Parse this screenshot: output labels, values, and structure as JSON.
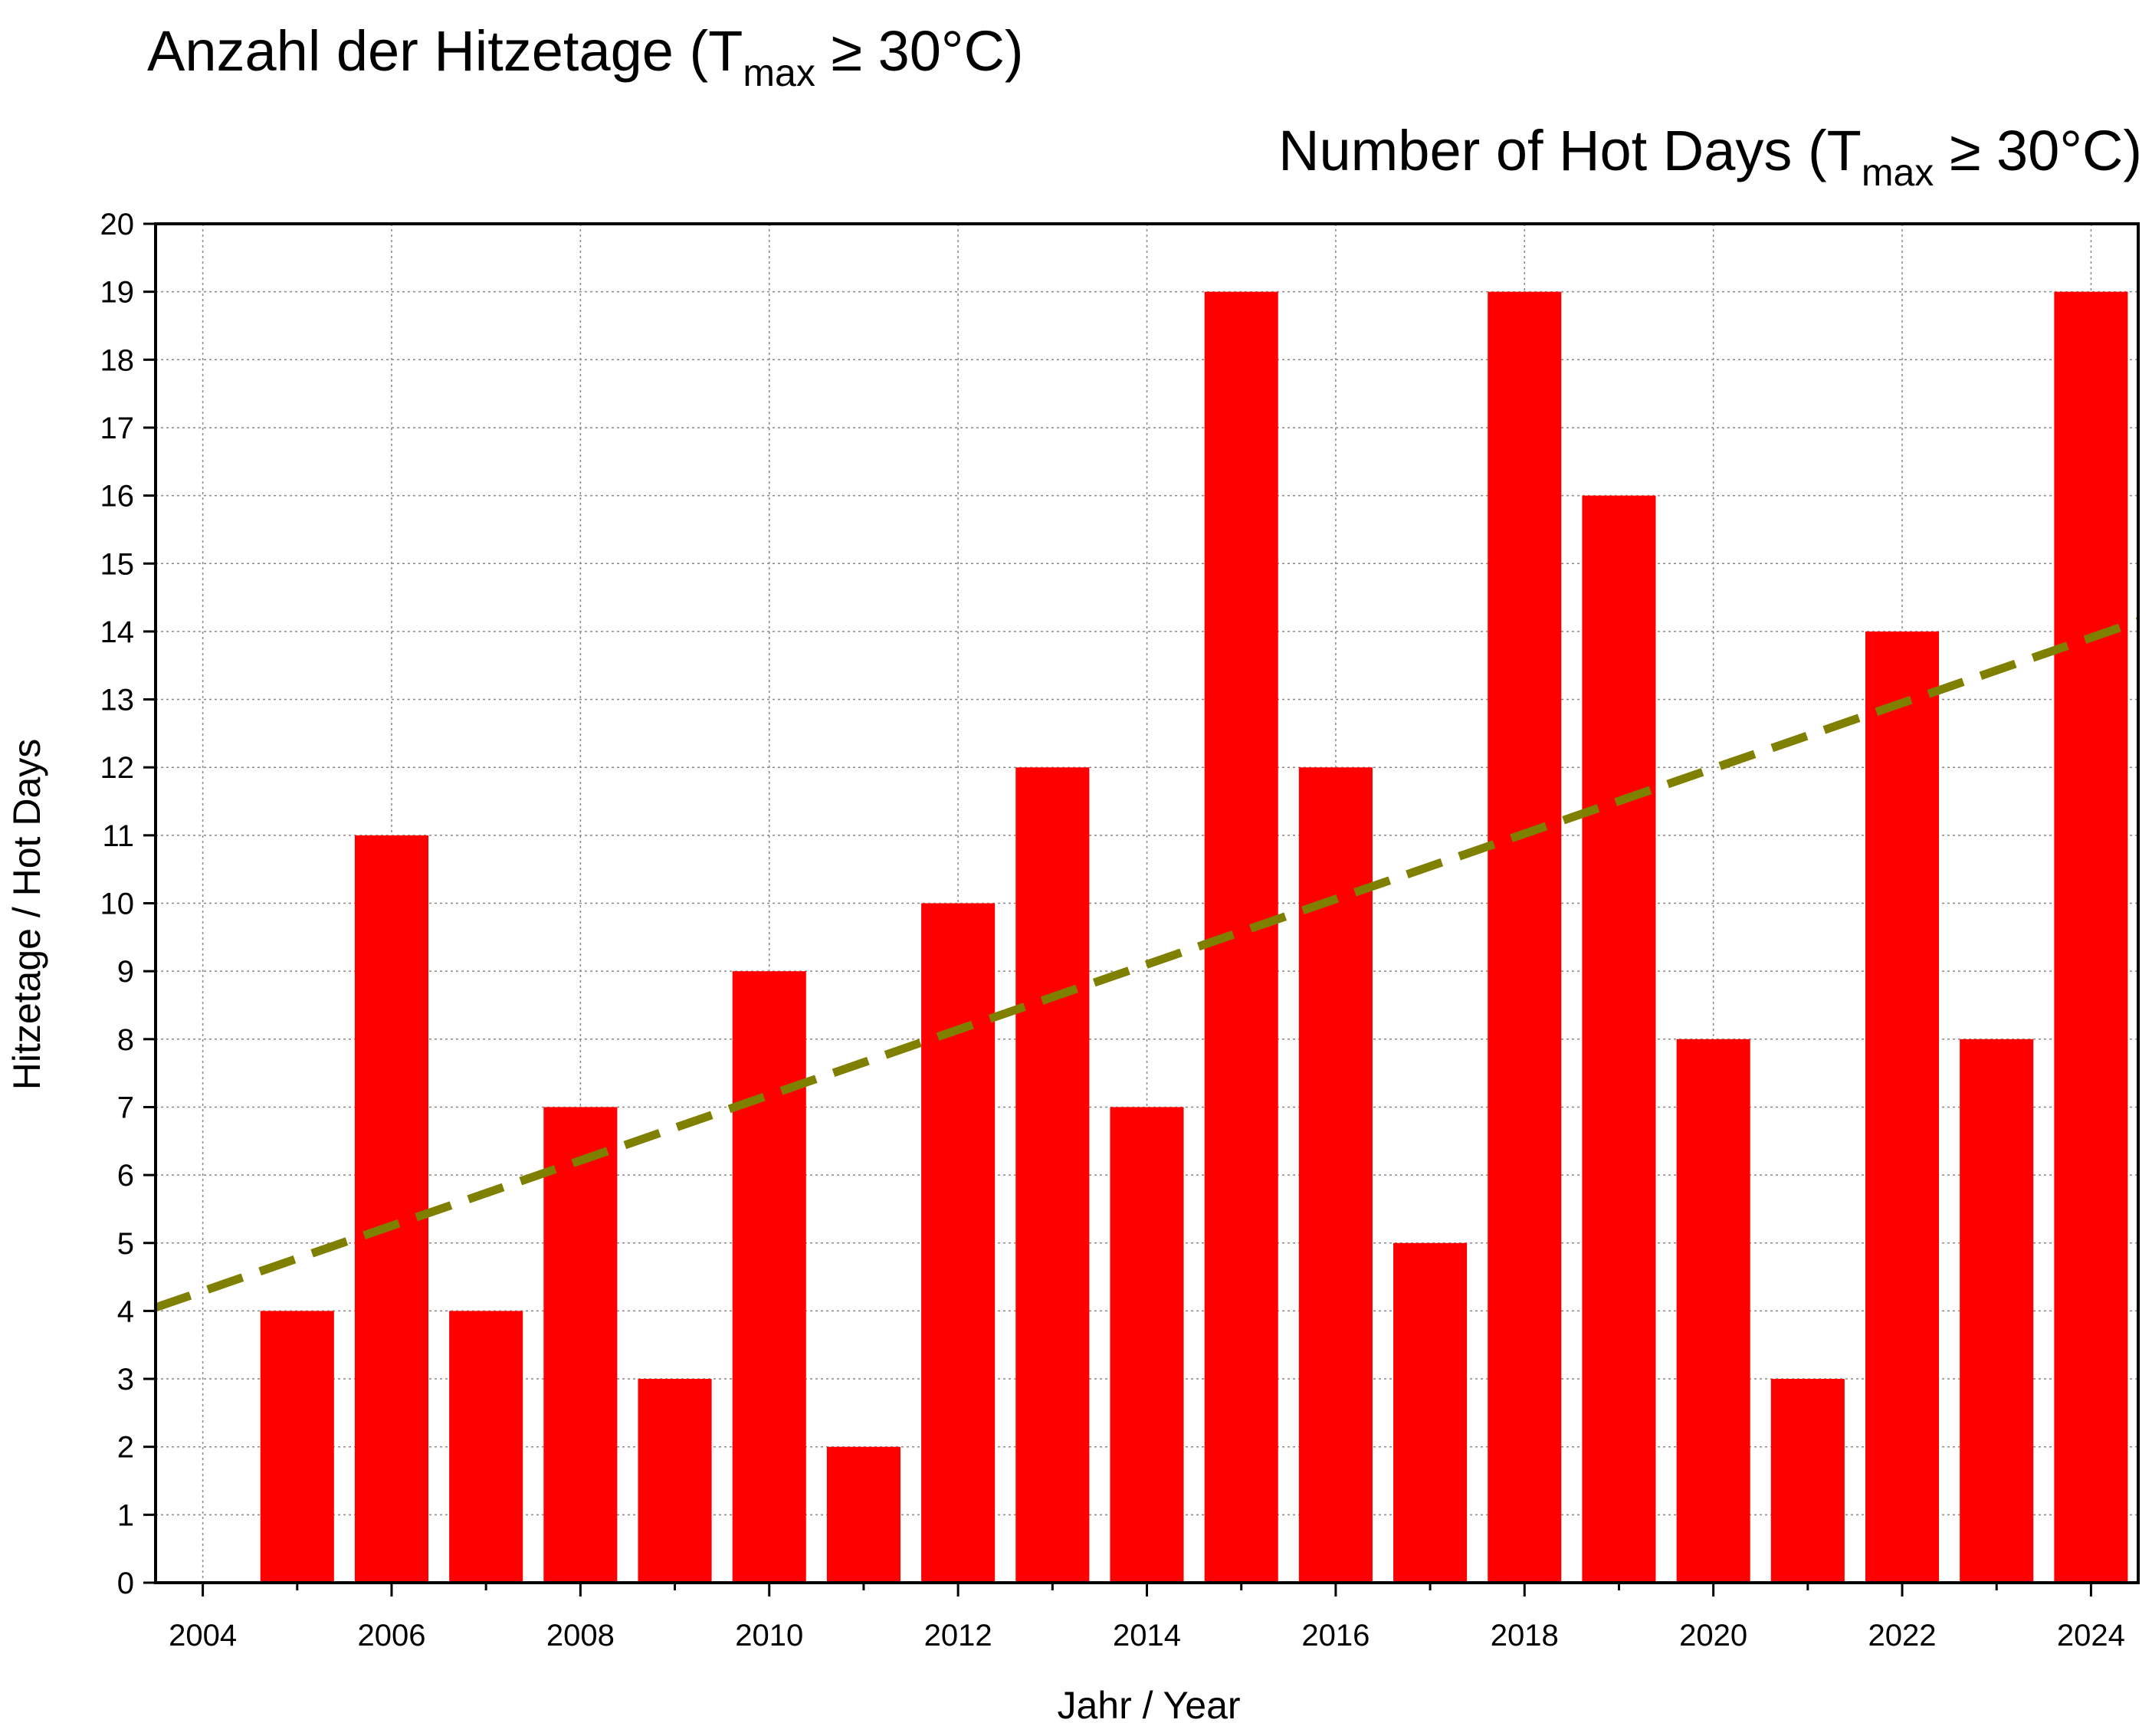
{
  "title_de": {
    "prefix": "Anzahl der Hitzetage (T",
    "subscript": "max",
    "suffix": " ≥ 30°C)"
  },
  "title_en": {
    "prefix": "Number of Hot Days (T",
    "subscript": "max",
    "suffix": " ≥ 30°C)"
  },
  "colors": {
    "bar": "#ff0000",
    "trend": "#808000",
    "grid": "#888888",
    "axis": "#000000"
  },
  "chart_data": {
    "type": "bar",
    "xlabel": "Jahr / Year",
    "ylabel": "Hitzetage / Hot Days",
    "xlim": [
      2003.5,
      2024.5
    ],
    "ylim": [
      0,
      20
    ],
    "x_ticks": [
      2004,
      2006,
      2008,
      2010,
      2012,
      2014,
      2016,
      2018,
      2020,
      2022,
      2024
    ],
    "y_ticks": [
      0,
      1,
      2,
      3,
      4,
      5,
      6,
      7,
      8,
      9,
      10,
      11,
      12,
      13,
      14,
      15,
      16,
      17,
      18,
      19,
      20
    ],
    "grid": true,
    "categories": [
      2005,
      2006,
      2007,
      2008,
      2009,
      2010,
      2011,
      2012,
      2013,
      2014,
      2015,
      2016,
      2017,
      2018,
      2019,
      2020,
      2021,
      2022,
      2023,
      2024
    ],
    "values": [
      4,
      11,
      4,
      7,
      3,
      9,
      2,
      10,
      12,
      7,
      19,
      12,
      5,
      19,
      16,
      8,
      3,
      14,
      8,
      19
    ],
    "trend_line": {
      "style": "dashed",
      "x": [
        2003.5,
        2024.5
      ],
      "y": [
        4.05,
        14.15
      ]
    }
  }
}
